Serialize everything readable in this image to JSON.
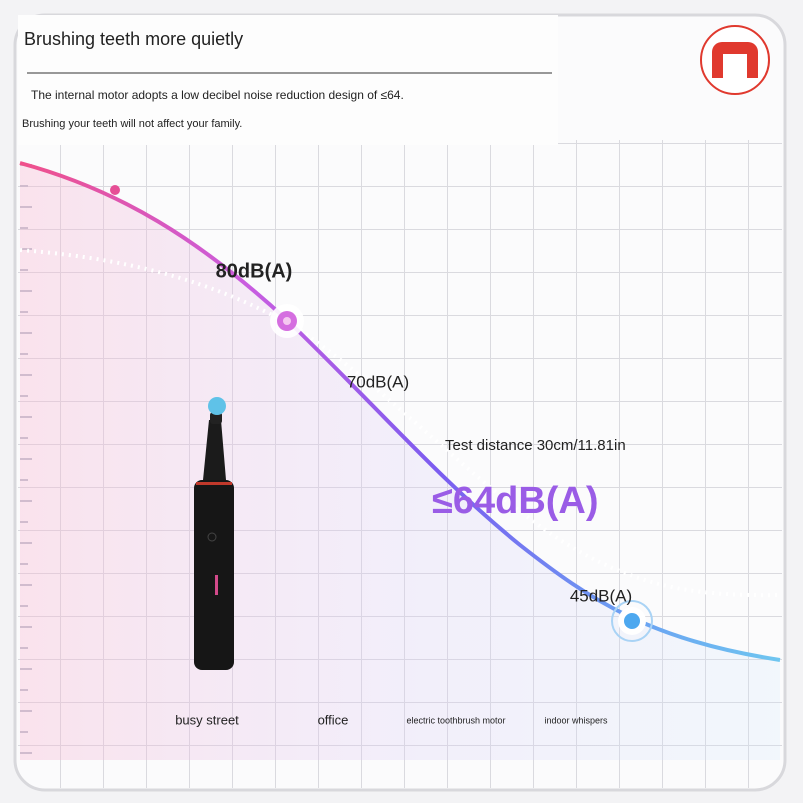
{
  "header": {
    "title": "Brushing teeth more quietly",
    "lines": [
      "The internal motor adopts a low decibel noise reduction design of ≤64.",
      "Brushing your teeth will not affect your family."
    ]
  },
  "curve_labels": {
    "street": "80dB(A)",
    "office": "70dB(A)",
    "distance": "Test distance 30cm/11.81in",
    "toothbrush": "≤64dB(A)",
    "whispers": "45dB(A)"
  },
  "categories": [
    "busy street",
    "office",
    "electric toothbrush motor",
    "indoor whispers"
  ]
}
